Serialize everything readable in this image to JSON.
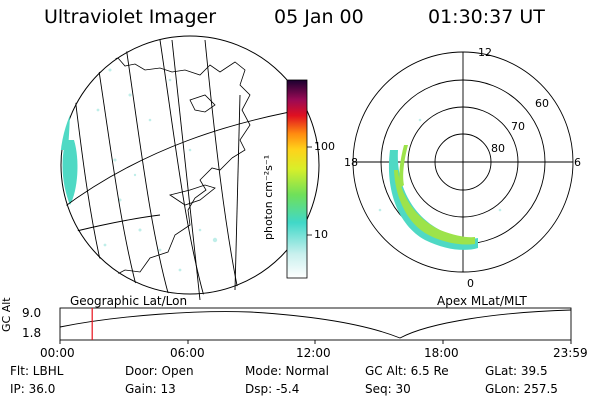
{
  "header": {
    "instrument": "Ultraviolet Imager",
    "date": "05 Jan 00",
    "time": "01:30:37 UT"
  },
  "colorbar": {
    "label": "photon cm⁻²s⁻¹",
    "ticks": [
      "100",
      "10"
    ]
  },
  "left_panel": {
    "caption": "Geographic Lat/Lon"
  },
  "right_panel": {
    "caption": "Apex  MLat/MLT",
    "mlt_labels": {
      "top": "12",
      "bottom": "0",
      "left": "18",
      "right": "6"
    },
    "lat_labels": [
      "60",
      "70",
      "80"
    ]
  },
  "timeline": {
    "ylabel": "GC Alt",
    "ymax": "9.0",
    "ymin": "1.8",
    "ticks": [
      "00:00",
      "06:00",
      "12:00",
      "18:00",
      "23:59"
    ],
    "current_time_fraction": 0.063
  },
  "info": {
    "row1": [
      "Flt: LBHL",
      "Door: Open",
      "Mode: Normal",
      "GC Alt: 6.5 Re",
      "GLat:  39.5"
    ],
    "row2": [
      "IP: 36.0",
      "Gain: 13",
      "Dsp:    -5.4",
      "Seq: 30",
      "GLon: 257.5"
    ]
  },
  "colors": {
    "aurora_low": "#4fd9c4",
    "aurora_mid": "#9de34a",
    "aurora_high": "#f08a1c",
    "time_marker": "#e8101a"
  }
}
